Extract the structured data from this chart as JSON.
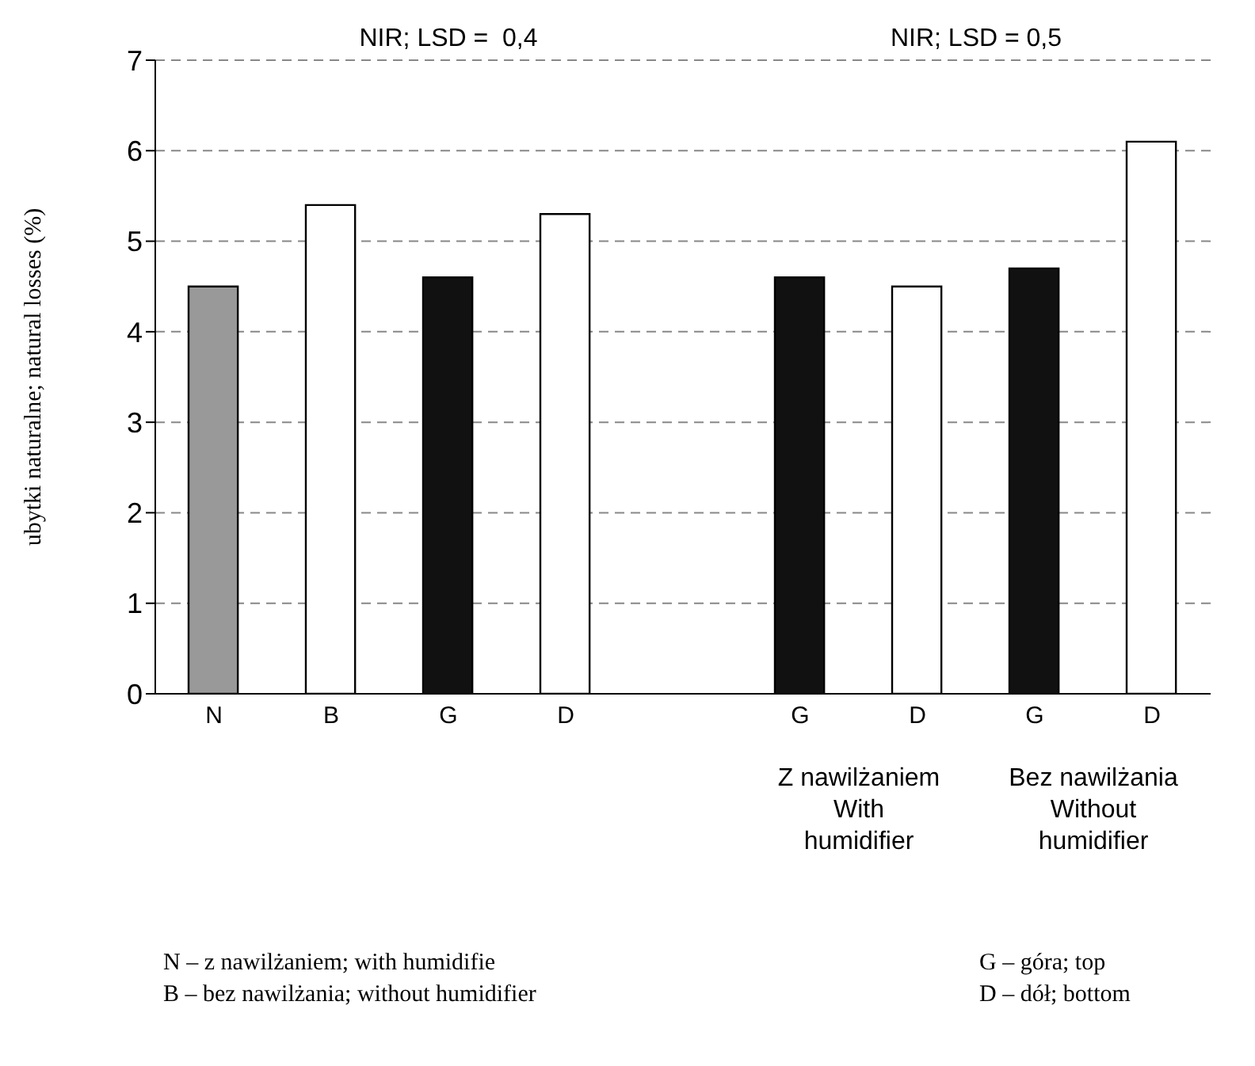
{
  "chart_data": {
    "type": "bar",
    "ylabel": "ubytki naturalne; natural losses (%)",
    "categories": [
      "N",
      "B",
      "G",
      "D",
      null,
      "G",
      "D",
      "G",
      "D"
    ],
    "values": [
      4.5,
      5.4,
      4.6,
      5.3,
      null,
      4.6,
      4.5,
      4.7,
      6.1
    ],
    "colors": [
      "#999999",
      "#ffffff",
      "#111111",
      "#ffffff",
      "#ffffff",
      "#111111",
      "#ffffff",
      "#111111",
      "#ffffff"
    ],
    "ylim": [
      0,
      7
    ],
    "yticks": [
      0,
      1,
      2,
      3,
      4,
      5,
      6,
      7
    ],
    "grid": "y",
    "annotations": [
      "NIR; LSD =  0,4",
      "NIR; LSD = 0,5",
      "Z nawilżaniem\nWith\nhumidifier",
      "Bez nawilżania\nWithout\nhumidifier",
      "N – z nawilżaniem; with humidifie",
      "B – bez nawilżania; without humidifier",
      "G – góra; top",
      "D – dół; bottom"
    ]
  }
}
